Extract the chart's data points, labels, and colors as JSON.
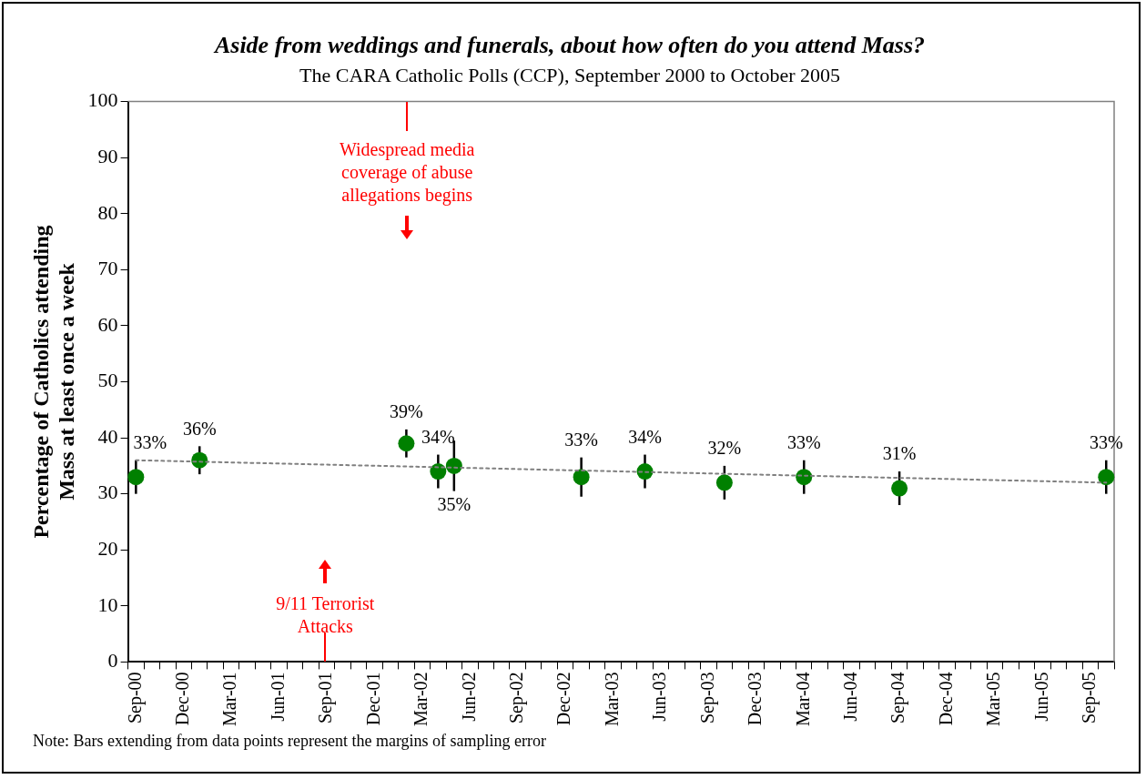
{
  "chart_data": {
    "type": "scatter",
    "title": "Aside from weddings and funerals, about how often do you attend Mass?",
    "subtitle": "The CARA Catholic Polls (CCP), September 2000 to October 2005",
    "ylabel": "Percentage of Catholics attending Mass at least once a week",
    "categories": [
      "Sep-00",
      null,
      null,
      "Dec-00",
      null,
      null,
      "Mar-01",
      null,
      null,
      "Jun-01",
      null,
      null,
      "Sep-01",
      null,
      null,
      "Dec-01",
      null,
      null,
      "Mar-02",
      null,
      null,
      "Jun-02",
      null,
      null,
      "Sep-02",
      null,
      null,
      "Dec-02",
      null,
      null,
      "Mar-03",
      null,
      null,
      "Jun-03",
      null,
      null,
      "Sep-03",
      null,
      null,
      "Dec-03",
      null,
      null,
      "Mar-04",
      null,
      null,
      "Jun-04",
      null,
      null,
      "Sep-04",
      null,
      null,
      "Dec-04",
      null,
      null,
      "Mar-05",
      null,
      null,
      "Jun-05",
      null,
      null,
      "Sep-05",
      null
    ],
    "series": [
      {
        "type": "line",
        "color": "#808080",
        "line_style": "dotted",
        "marker": "none",
        "values": [
          36,
          null,
          null,
          null,
          null,
          null,
          null,
          null,
          null,
          null,
          null,
          null,
          null,
          null,
          null,
          null,
          null,
          null,
          null,
          null,
          null,
          null,
          null,
          null,
          null,
          null,
          null,
          null,
          null,
          null,
          null,
          null,
          null,
          null,
          null,
          null,
          null,
          null,
          null,
          null,
          null,
          null,
          null,
          null,
          null,
          null,
          null,
          null,
          null,
          null,
          null,
          null,
          null,
          null,
          null,
          null,
          null,
          null,
          null,
          null,
          null,
          32
        ]
      },
      {
        "color": "#008000",
        "marker": "circle",
        "values": [
          33,
          null,
          null,
          null,
          36,
          null,
          null,
          null,
          null,
          null,
          null,
          null,
          null,
          null,
          null,
          null,
          null,
          39,
          null,
          34,
          35,
          null,
          null,
          null,
          null,
          null,
          null,
          null,
          33,
          null,
          null,
          null,
          34,
          null,
          null,
          null,
          null,
          32,
          null,
          null,
          null,
          null,
          33,
          null,
          null,
          null,
          null,
          null,
          31,
          null,
          null,
          null,
          null,
          null,
          null,
          null,
          null,
          null,
          null,
          null,
          null,
          33
        ],
        "errors": [
          3,
          null,
          null,
          null,
          2.5,
          null,
          null,
          null,
          null,
          null,
          null,
          null,
          null,
          null,
          null,
          null,
          null,
          2.5,
          null,
          3,
          4.5,
          null,
          null,
          null,
          null,
          null,
          null,
          null,
          3.5,
          null,
          null,
          null,
          3,
          null,
          null,
          null,
          null,
          3,
          null,
          null,
          null,
          null,
          3,
          null,
          null,
          null,
          null,
          null,
          3,
          null,
          null,
          null,
          null,
          null,
          null,
          null,
          null,
          null,
          null,
          null,
          null,
          3
        ],
        "value_labels": [
          "33%",
          null,
          null,
          null,
          "36%",
          null,
          null,
          null,
          null,
          null,
          null,
          null,
          null,
          null,
          null,
          null,
          null,
          "39%",
          null,
          "34%",
          "35%",
          null,
          null,
          null,
          null,
          null,
          null,
          null,
          "33%",
          null,
          null,
          null,
          "34%",
          null,
          null,
          null,
          null,
          "32%",
          null,
          null,
          null,
          null,
          "33%",
          null,
          null,
          null,
          null,
          null,
          "31%",
          null,
          null,
          null,
          null,
          null,
          null,
          null,
          null,
          null,
          null,
          null,
          null,
          "33%"
        ]
      }
    ],
    "ylim": [
      0,
      100
    ],
    "yticks": [
      0,
      10,
      20,
      30,
      40,
      50,
      60,
      70,
      80,
      90,
      100
    ],
    "annotations": [
      "9/11 Terrorist Attacks",
      "Widespread media coverage of abuse allegations  begins",
      "Note: Bars extending from data points represent the margins of sampling error"
    ]
  }
}
